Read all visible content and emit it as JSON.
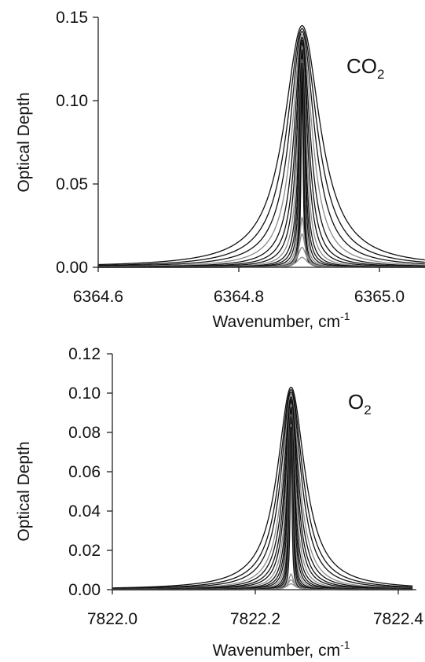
{
  "chart_data": [
    {
      "type": "line",
      "annotation": {
        "base": "CO",
        "sub": "2"
      },
      "xlabel": {
        "base": "Wavenumber, cm",
        "sup": "-1"
      },
      "ylabel": "Optical Depth",
      "xlim": [
        6364.6,
        6365.13
      ],
      "ylim": [
        0,
        0.15
      ],
      "xticks": [
        "6364.6",
        "6364.8",
        "6365.0"
      ],
      "yticks": [
        "0.00",
        "0.05",
        "0.10",
        "0.15"
      ],
      "grid": false,
      "line_center": 6364.89,
      "lorentz_areas": [
        0.0045,
        0.0037,
        0.003,
        0.0024,
        0.0019,
        0.0015,
        0.0012,
        0.00095,
        0.00075,
        0.0006,
        0.00048,
        0.00038,
        0.0003,
        0.00024,
        0.00019
      ],
      "peak_max": 0.145,
      "small_cores": [
        0.03,
        0.02,
        0.012,
        0.006
      ],
      "series_color_dark": "#111111",
      "series_color_light": "#8a8a8a"
    },
    {
      "type": "line",
      "annotation": {
        "base": "O",
        "sub": "2"
      },
      "xlabel": {
        "base": "Wavenumber, cm",
        "sup": "-1"
      },
      "ylabel": "Optical Depth",
      "xlim": [
        7822.0,
        7822.42
      ],
      "ylim": [
        0,
        0.12
      ],
      "xticks": [
        "7822.0",
        "7822.2",
        "7822.4"
      ],
      "yticks": [
        "0.00",
        "0.02",
        "0.04",
        "0.06",
        "0.08",
        "0.10",
        "0.12"
      ],
      "grid": false,
      "line_center": 7822.25,
      "lorentz_areas": [
        0.0024,
        0.002,
        0.0017,
        0.0014,
        0.0012,
        0.001,
        0.00085,
        0.0007,
        0.00058,
        0.00048,
        0.0004,
        0.00033,
        0.00027,
        0.00022,
        0.00018,
        0.00015,
        0.00012
      ],
      "peak_max": 0.103,
      "small_cores": [
        0.008,
        0.005,
        0.003
      ],
      "series_color_dark": "#111111",
      "series_color_light": "#8a8a8a"
    }
  ]
}
